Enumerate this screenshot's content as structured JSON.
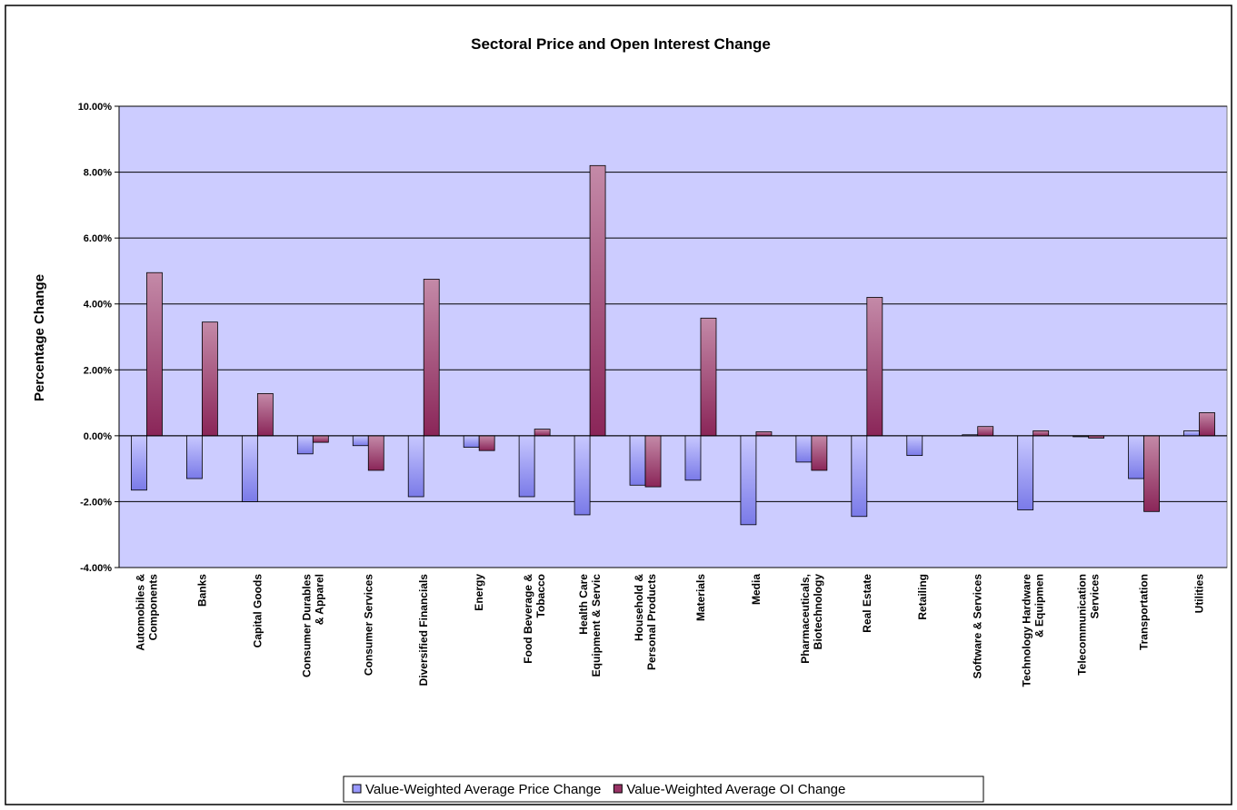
{
  "chart_data": {
    "type": "bar",
    "title": "Sectoral Price and Open Interest Change",
    "ylabel": "Percentage Change",
    "categories": [
      "Automobiles &\nComponents",
      "Banks",
      "Capital Goods",
      "Consumer Durables\n& Apparel",
      "Consumer Services",
      "Diversified Financials",
      "Energy",
      "Food Beverage &\nTobacco",
      "Health Care\nEquipment & Servic",
      "Household &\nPersonal Products",
      "Materials",
      "Media",
      "Pharmaceuticals,\nBiotechnology",
      "Real Estate",
      "Retailing",
      "Software & Services",
      "Technology Hardware\n& Equipmen",
      "Telecommunication\nServices",
      "Transportation",
      "Utilities"
    ],
    "series": [
      {
        "name": "Value-Weighted Average Price Change",
        "color": "#9999ff",
        "values": [
          -1.65,
          -1.3,
          -2.0,
          -0.55,
          -0.3,
          -1.85,
          -0.35,
          -1.85,
          -2.4,
          -1.5,
          -1.35,
          -2.7,
          -0.8,
          -2.45,
          -0.6,
          0.03,
          -2.25,
          -0.03,
          -1.3,
          0.15
        ]
      },
      {
        "name": "Value-Weighted Average OI Change",
        "color": "#993366",
        "values": [
          4.95,
          3.45,
          1.28,
          -0.2,
          -1.05,
          4.75,
          -0.45,
          0.2,
          8.2,
          -1.55,
          3.57,
          0.12,
          -1.05,
          4.2,
          0,
          0.28,
          0.15,
          -0.07,
          -2.3,
          0.7
        ]
      }
    ],
    "ylim": [
      -4,
      10
    ],
    "yticks": [
      {
        "value": -4,
        "label": "-4.00%"
      },
      {
        "value": -2,
        "label": "-2.00%"
      },
      {
        "value": 0,
        "label": "0.00%"
      },
      {
        "value": 2,
        "label": "2.00%"
      },
      {
        "value": 4,
        "label": "4.00%"
      },
      {
        "value": 6,
        "label": "6.00%"
      },
      {
        "value": 8,
        "label": "8.00%"
      },
      {
        "value": 10,
        "label": "10.00%"
      }
    ],
    "grid": true,
    "plot_background": "#ccccff",
    "legend": "bottom"
  }
}
